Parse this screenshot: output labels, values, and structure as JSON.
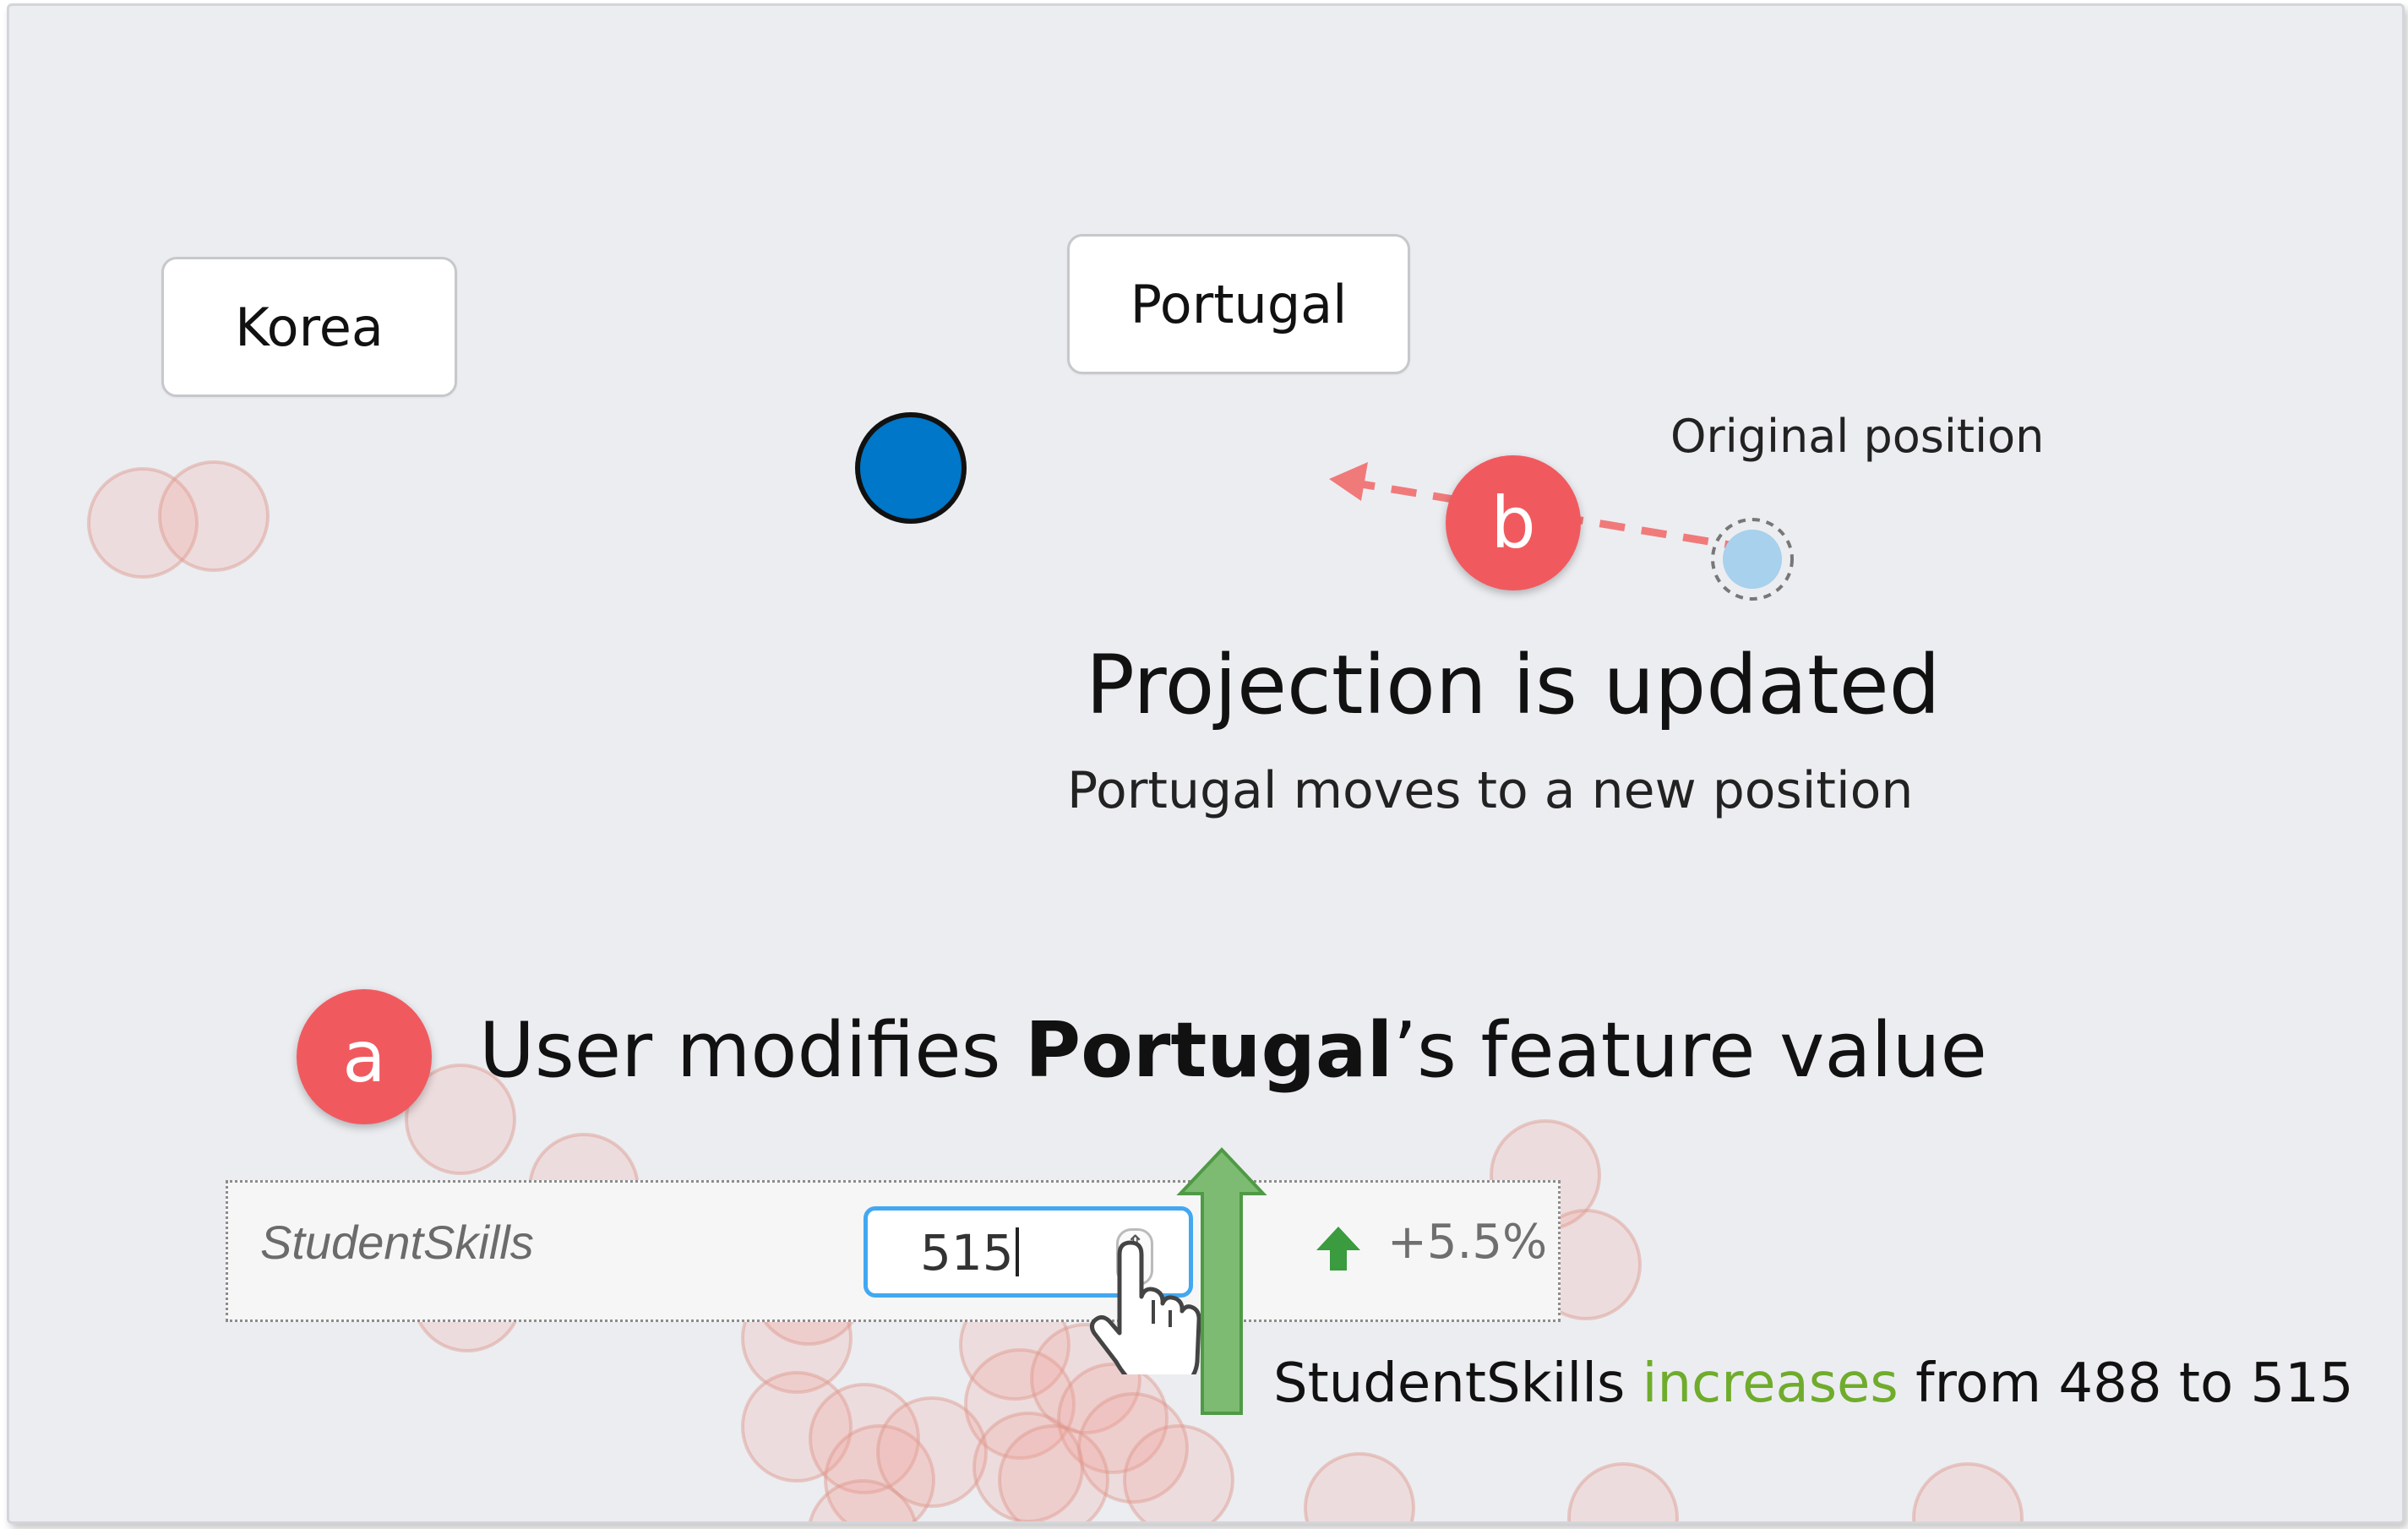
{
  "labels": {
    "korea": "Korea",
    "portugal": "Portugal",
    "original_position": "Original position"
  },
  "badges": {
    "a": "a",
    "b": "b"
  },
  "projection": {
    "title": "Projection is updated",
    "subtitle": "Portugal moves to a new position"
  },
  "modify": {
    "prefix": "User modifies ",
    "country": "Portugal",
    "suffix": "’s feature value"
  },
  "feature": {
    "name": "StudentSkills",
    "value": "515",
    "change": "+5.5%"
  },
  "caption": {
    "feature": "StudentSkills",
    "verb": "increases",
    "rest": "from 488 to 515"
  },
  "colors": {
    "background": "#ecedf1",
    "badge": "#f05a5f",
    "point_new": "#0077c8",
    "point_original": "#a7d1ec",
    "trail": "#f07a7a",
    "increase": "#6fac2c",
    "green_arrow": "#7dbb72",
    "input_border": "#43a8f0",
    "bubble": "#f2c9c3"
  },
  "icons": {
    "increase": "arrow-up-icon",
    "cursor": "hand-pointer-icon",
    "spinner": "spinner-icon"
  }
}
